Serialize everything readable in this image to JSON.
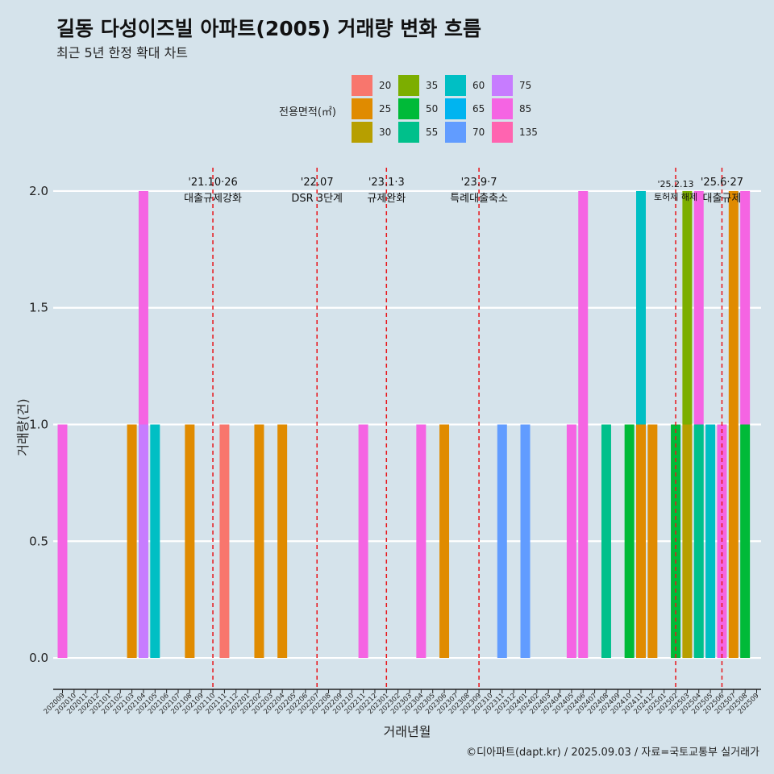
{
  "header": {
    "title": "길동 다성이즈빌 아파트(2005) 거래량 변화 흐름",
    "subtitle": "최근 5년 한정 확대 차트"
  },
  "legend": {
    "title": "전용면적(㎡)",
    "items": [
      {
        "label": "20",
        "color": "#f8766d"
      },
      {
        "label": "25",
        "color": "#e08b00"
      },
      {
        "label": "30",
        "color": "#b79f00"
      },
      {
        "label": "35",
        "color": "#7cae00"
      },
      {
        "label": "50",
        "color": "#00ba38"
      },
      {
        "label": "55",
        "color": "#00c08b"
      },
      {
        "label": "60",
        "color": "#00bfc4"
      },
      {
        "label": "65",
        "color": "#00b4f0"
      },
      {
        "label": "70",
        "color": "#619cff"
      },
      {
        "label": "75",
        "color": "#c77cff"
      },
      {
        "label": "85",
        "color": "#f564e3"
      },
      {
        "label": "135",
        "color": "#ff64b0"
      }
    ]
  },
  "caption": "©디아파트(dapt.kr) / 2025.09.03 / 자료=국토교통부 실거래가",
  "chart_data": {
    "type": "bar",
    "xlabel": "거래년월",
    "ylabel": "거래량(건)",
    "ylim": [
      -0.1,
      2.1
    ],
    "yticks": [
      "0.0",
      "0.5",
      "1.0",
      "1.5",
      "2.0"
    ],
    "categories": [
      "202009",
      "202010",
      "202011",
      "202012",
      "202101",
      "202102",
      "202103",
      "202104",
      "202105",
      "202106",
      "202107",
      "202108",
      "202109",
      "202110",
      "202111",
      "202112",
      "202201",
      "202202",
      "202203",
      "202204",
      "202205",
      "202206",
      "202207",
      "202208",
      "202209",
      "202210",
      "202211",
      "202212",
      "202301",
      "202302",
      "202303",
      "202304",
      "202305",
      "202306",
      "202307",
      "202308",
      "202309",
      "202310",
      "202311",
      "202312",
      "202401",
      "202402",
      "202403",
      "202404",
      "202405",
      "202406",
      "202407",
      "202408",
      "202409",
      "202410",
      "202411",
      "202412",
      "202501",
      "202502",
      "202503",
      "202504",
      "202505",
      "202506",
      "202507",
      "202508",
      "202509"
    ],
    "series": [
      {
        "name": "20",
        "points": [
          [
            "202111",
            1
          ]
        ]
      },
      {
        "name": "25",
        "points": [
          [
            "202103",
            1
          ],
          [
            "202108",
            1
          ],
          [
            "202202",
            1
          ],
          [
            "202204",
            1
          ],
          [
            "202306",
            1
          ],
          [
            "202411",
            1
          ],
          [
            "202412",
            1
          ],
          [
            "202507",
            2
          ]
        ]
      },
      {
        "name": "30",
        "points": [
          [
            "202503",
            1
          ]
        ]
      },
      {
        "name": "35",
        "points": [
          [
            "202503",
            1
          ]
        ]
      },
      {
        "name": "50",
        "points": [
          [
            "202410",
            1
          ],
          [
            "202502",
            1
          ],
          [
            "202508",
            1
          ]
        ]
      },
      {
        "name": "55",
        "points": [
          [
            "202408",
            1
          ],
          [
            "202504",
            1
          ]
        ]
      },
      {
        "name": "60",
        "points": [
          [
            "202105",
            1
          ],
          [
            "202411",
            1
          ],
          [
            "202505",
            1
          ]
        ]
      },
      {
        "name": "70",
        "points": [
          [
            "202311",
            1
          ],
          [
            "202401",
            1
          ]
        ]
      },
      {
        "name": "75",
        "points": [
          [
            "202104",
            1
          ]
        ]
      },
      {
        "name": "85",
        "points": [
          [
            "202009",
            1
          ],
          [
            "202104",
            1
          ],
          [
            "202211",
            1
          ],
          [
            "202304",
            1
          ],
          [
            "202405",
            1
          ],
          [
            "202406",
            2
          ],
          [
            "202504",
            1
          ],
          [
            "202506",
            1
          ],
          [
            "202508",
            1
          ]
        ]
      }
    ],
    "events": [
      {
        "month": "202110",
        "date": "'21.10·26",
        "label": "대출규제강화"
      },
      {
        "month": "202207",
        "date": "'22.07",
        "label": "DSR 3단계"
      },
      {
        "month": "202301",
        "date": "'23.1·3",
        "label": "규제완화"
      },
      {
        "month": "202309",
        "date": "'23.9·7",
        "label": "특례대출축소"
      },
      {
        "month": "202502",
        "date": "'25.2.13",
        "label": "토허제 해제"
      },
      {
        "month": "202506",
        "date": "'25.6·27",
        "label": "대출규제"
      }
    ]
  }
}
